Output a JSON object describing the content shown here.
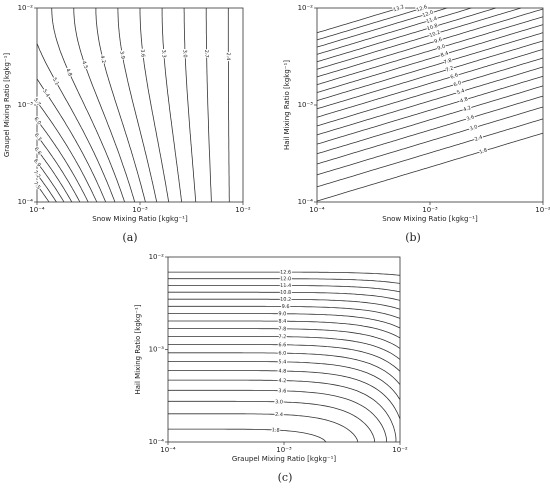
{
  "chart_data": [
    {
      "type": "contour",
      "panel_label": "(a)",
      "xlabel": "Snow Mixing Ratio [kgkg⁻¹]",
      "ylabel": "Graupel Mixing Ratio [kgkg⁻¹]",
      "log_scale": true,
      "color": "#333333",
      "xlim": [
        0.0001,
        0.01
      ],
      "ylim": [
        0.0001,
        0.01
      ],
      "xticks": [
        {
          "value": 0.0001,
          "label": "10⁻⁴"
        },
        {
          "value": 0.001,
          "label": "10⁻³"
        },
        {
          "value": 0.01,
          "label": "10⁻²"
        }
      ],
      "yticks": [
        {
          "value": 0.0001,
          "label": "10⁻⁴"
        },
        {
          "value": 0.001,
          "label": "10⁻³"
        },
        {
          "value": 0.01,
          "label": "10⁻²"
        }
      ],
      "levels": [
        2.4,
        2.7,
        3.0,
        3.3,
        3.6,
        3.9,
        4.2,
        4.5,
        4.8,
        5.1,
        5.4,
        5.7,
        6.0,
        6.3,
        6.6,
        6.9,
        7.2,
        7.5
      ],
      "value_labels": [
        "2.4",
        "2.7",
        "3.0",
        "3.3",
        "3.6",
        "3.9",
        "4.2",
        "4.5",
        "4.8",
        "5.1",
        "5.4",
        "5.7",
        "6.0",
        "6.3",
        "6.6",
        "6.9",
        "7.2",
        "7.5"
      ]
    },
    {
      "type": "contour",
      "panel_label": "(b)",
      "xlabel": "Snow Mixing Ratio [kgkg⁻¹]",
      "ylabel": "Hail Mixing Ratio [kgkg⁻¹]",
      "log_scale": true,
      "color": "#333333",
      "xlim": [
        0.0001,
        0.01
      ],
      "ylim": [
        0.0001,
        0.01
      ],
      "xticks": [
        {
          "value": 0.0001,
          "label": "10⁻⁴"
        },
        {
          "value": 0.001,
          "label": "10⁻³"
        },
        {
          "value": 0.01,
          "label": "10⁻²"
        }
      ],
      "yticks": [
        {
          "value": 0.0001,
          "label": "10⁻⁴"
        },
        {
          "value": 0.001,
          "label": "10⁻³"
        },
        {
          "value": 0.01,
          "label": "10⁻²"
        }
      ],
      "levels": [
        1.8,
        2.4,
        3.0,
        3.6,
        4.2,
        4.8,
        5.4,
        6.0,
        6.6,
        7.2,
        7.8,
        8.4,
        9.0,
        9.6,
        10.2,
        10.8,
        11.4,
        12.0,
        12.6,
        13.2
      ],
      "value_labels": [
        "1.8",
        "2.4",
        "3.0",
        "3.6",
        "4.2",
        "4.8",
        "5.4",
        "6.0",
        "6.6",
        "7.2",
        "7.8",
        "8.4",
        "9.0",
        "9.6",
        "10.2",
        "10.8",
        "11.4",
        "12.0",
        "12.6",
        "13.2"
      ]
    },
    {
      "type": "contour",
      "panel_label": "(c)",
      "xlabel": "Graupel Mixing Ratio [kgkg⁻¹]",
      "ylabel": "Hail Mixing Ratio [kgkg⁻¹]",
      "log_scale": true,
      "color": "#333333",
      "xlim": [
        0.0001,
        0.01
      ],
      "ylim": [
        0.0001,
        0.01
      ],
      "xticks": [
        {
          "value": 0.0001,
          "label": "10⁻⁴"
        },
        {
          "value": 0.001,
          "label": "10⁻³"
        },
        {
          "value": 0.01,
          "label": "10⁻²"
        }
      ],
      "yticks": [
        {
          "value": 0.0001,
          "label": "10⁻⁴"
        },
        {
          "value": 0.001,
          "label": "10⁻³"
        },
        {
          "value": 0.01,
          "label": "10⁻²"
        }
      ],
      "levels": [
        1.8,
        2.4,
        3.0,
        3.6,
        4.2,
        4.8,
        5.4,
        6.0,
        6.6,
        7.2,
        7.8,
        8.4,
        9.0,
        9.6,
        10.2,
        10.8,
        11.4,
        12.0,
        12.6
      ],
      "value_labels": [
        "1.8",
        "2.4",
        "3.0",
        "3.6",
        "4.2",
        "4.8",
        "5.4",
        "6.0",
        "6.6",
        "7.2",
        "7.8",
        "8.4",
        "9.0",
        "9.6",
        "10.2",
        "10.8",
        "11.4",
        "12.0",
        "12.6"
      ]
    }
  ]
}
